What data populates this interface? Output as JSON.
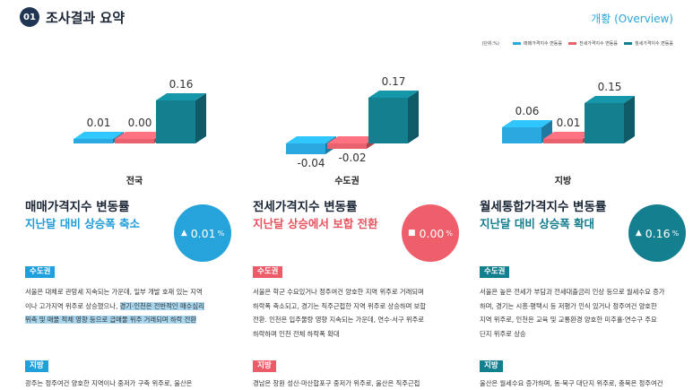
{
  "header": {
    "number": "01",
    "title": "조사결과 요약",
    "overview": "개황 (Overview)"
  },
  "legend": {
    "unit": "(단위:%)",
    "items": [
      {
        "label": "매매가격지수 변동률",
        "color": "#29a9df"
      },
      {
        "label": "전세가격지수 변동률",
        "color": "#e8616d"
      },
      {
        "label": "월세가격지수 변동률",
        "color": "#137f8f"
      }
    ]
  },
  "chart_data": {
    "type": "bar",
    "categories": [
      "전국",
      "수도권",
      "지방"
    ],
    "series": [
      {
        "name": "매매가격지수 변동률",
        "values": [
          0.01,
          -0.04,
          0.06
        ],
        "labels": [
          "0.01",
          "-0.04",
          "0.06"
        ]
      },
      {
        "name": "전세가격지수 변동률",
        "values": [
          0.0,
          -0.02,
          0.01
        ],
        "labels": [
          "0.00",
          "-0.02",
          "0.01"
        ]
      },
      {
        "name": "월세가격지수 변동률",
        "values": [
          0.16,
          0.17,
          0.15
        ],
        "labels": [
          "0.16",
          "0.17",
          "0.15"
        ]
      }
    ],
    "colors": [
      "#29a9df",
      "#e8616d",
      "#137f8f"
    ],
    "title": "",
    "xlabel": "",
    "ylabel": ""
  },
  "cards": [
    {
      "title": "매매가격지수 변동률",
      "subtitle": "지난달 대비 상승폭 축소",
      "subcolor": "#1f9bd6",
      "circle": {
        "symbol": "▲",
        "value": "0.01",
        "pct": "%",
        "color": "#27a3db"
      },
      "tag1": {
        "label": "수도권",
        "color": "#1fa0dc"
      },
      "text1_lines": [
        "서울은 대체로 관망세 지속되는 가운데, 일부 개발 호재 있는 지역",
        "이나 고가지역 위주로 상승했으나, ",
        "위축 및 매물 적체 영향 등으로 급매물 위주 거래되며 하락 전환"
      ],
      "text1_hl": [
        "경기·인천은 전반적인 매수심리"
      ],
      "tag2": {
        "label": "지방",
        "color": "#1fa0dc"
      },
      "text2_lines": [
        "광주는 정주여건 양호한 지역이나 중저가 구축 위주로, 울산은"
      ]
    },
    {
      "title": "전세가격지수 변동률",
      "subtitle": "지난달 상승에서 보합 전환",
      "subcolor": "#e8525e",
      "circle": {
        "symbol": "■",
        "value": "0.00",
        "pct": "%",
        "color": "#ee5f6b"
      },
      "tag1": {
        "label": "수도권",
        "color": "#ec5b67"
      },
      "text1_lines": [
        "서울은 학군 수요있거나 정주여건 양호한 지역 위주로 거래되며",
        "하락폭 축소되고, 경기는 직주근접한 지역 위주로 상승하며 보합",
        "전환. 인천은 입주물량 영향 지속되는 가운데, 연수·서구 위주로",
        "하락하며 인천 전체 하락폭 확대"
      ],
      "tag2": {
        "label": "지방",
        "color": "#ec5b67"
      },
      "text2_lines": [
        "경남은 창원 성산·마산합포구 중저가 위주로, 울산은 직주근접"
      ]
    },
    {
      "title": "월세통합가격지수 변동률",
      "subtitle": "지난달 대비 상승폭 확대",
      "subcolor": "#127c8c",
      "circle": {
        "symbol": "▲",
        "value": "0.16",
        "pct": "%",
        "color": "#137f8f"
      },
      "tag1": {
        "label": "수도권",
        "color": "#137f8f"
      },
      "text1_lines": [
        "서울은 높은 전세가 부담과 전세대출금리 인상 등으로 월세수요 증가",
        "하며, 경기는 시흥·평택시 등 저평가 인식 있거나 정주여건 양호한",
        "지역 위주로, 인천은 교육 및 교통환경 양호한 미추홀·연수구 주요",
        "단지 위주로 상승"
      ],
      "tag2": {
        "label": "지방",
        "color": "#137f8f"
      },
      "text2_lines": [
        "울산은 월세수요 증가하며, 동·북구 대단지 위주로, 충북은 정주여건"
      ]
    }
  ]
}
